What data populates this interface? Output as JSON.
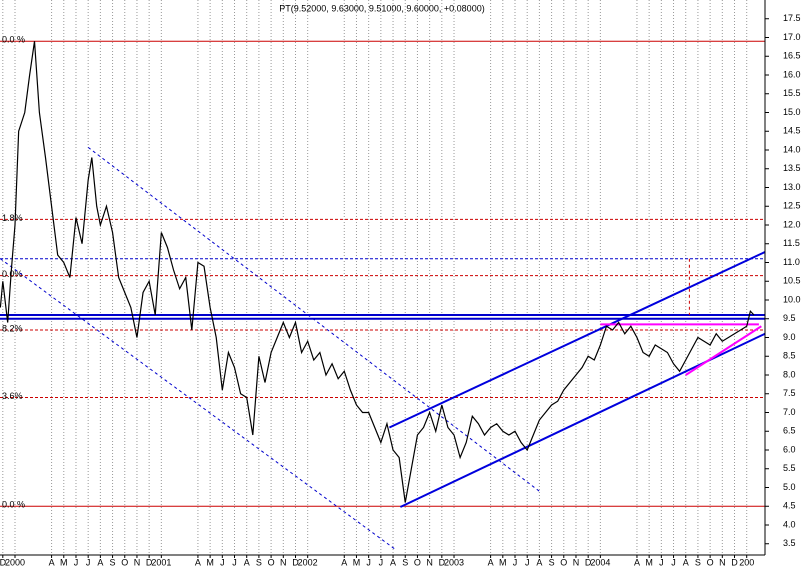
{
  "chart_data": {
    "type": "line",
    "title": "PT(9.52000, 9.63000, 9.51000, 9.60000, +0.08000)",
    "xlim": [
      -1.23,
      61.5
    ],
    "ylim": [
      3.2,
      18.0
    ],
    "grid": true,
    "xticks": [
      {
        "value": -1,
        "label": "D"
      },
      {
        "value": 0,
        "label": "2000"
      },
      {
        "value": 3,
        "label": "A"
      },
      {
        "value": 4,
        "label": "M"
      },
      {
        "value": 5,
        "label": "J"
      },
      {
        "value": 6,
        "label": "J"
      },
      {
        "value": 7,
        "label": "A"
      },
      {
        "value": 8,
        "label": "S"
      },
      {
        "value": 9,
        "label": "O"
      },
      {
        "value": 10,
        "label": "N"
      },
      {
        "value": 11,
        "label": "D"
      },
      {
        "value": 12,
        "label": "2001"
      },
      {
        "value": 15,
        "label": "A"
      },
      {
        "value": 16,
        "label": "M"
      },
      {
        "value": 17,
        "label": "J"
      },
      {
        "value": 18,
        "label": "J"
      },
      {
        "value": 19,
        "label": "A"
      },
      {
        "value": 20,
        "label": "S"
      },
      {
        "value": 21,
        "label": "O"
      },
      {
        "value": 22,
        "label": "N"
      },
      {
        "value": 23,
        "label": "D"
      },
      {
        "value": 24,
        "label": "2002"
      },
      {
        "value": 27,
        "label": "A"
      },
      {
        "value": 28,
        "label": "M"
      },
      {
        "value": 29,
        "label": "J"
      },
      {
        "value": 30,
        "label": "J"
      },
      {
        "value": 31,
        "label": "A"
      },
      {
        "value": 32,
        "label": "S"
      },
      {
        "value": 33,
        "label": "O"
      },
      {
        "value": 34,
        "label": "N"
      },
      {
        "value": 35,
        "label": "D"
      },
      {
        "value": 36,
        "label": "2003"
      },
      {
        "value": 39,
        "label": "A"
      },
      {
        "value": 40,
        "label": "M"
      },
      {
        "value": 41,
        "label": "J"
      },
      {
        "value": 42,
        "label": "J"
      },
      {
        "value": 43,
        "label": "A"
      },
      {
        "value": 44,
        "label": "S"
      },
      {
        "value": 45,
        "label": "O"
      },
      {
        "value": 46,
        "label": "N"
      },
      {
        "value": 47,
        "label": "D"
      },
      {
        "value": 48,
        "label": "2004"
      },
      {
        "value": 51,
        "label": "A"
      },
      {
        "value": 52,
        "label": "M"
      },
      {
        "value": 53,
        "label": "J"
      },
      {
        "value": 54,
        "label": "J"
      },
      {
        "value": 55,
        "label": "A"
      },
      {
        "value": 56,
        "label": "S"
      },
      {
        "value": 57,
        "label": "O"
      },
      {
        "value": 58,
        "label": "N"
      },
      {
        "value": 59,
        "label": "D"
      },
      {
        "value": 60,
        "label": "200"
      }
    ],
    "yticks": [
      3.5,
      {
        "value": 4,
        "label": "4.0"
      },
      4.5,
      {
        "value": 5,
        "label": "5.0"
      },
      5.5,
      {
        "value": 6,
        "label": "6.0"
      },
      6.5,
      {
        "value": 7,
        "label": "7.0"
      },
      7.5,
      {
        "value": 8,
        "label": "8.0"
      },
      8.5,
      {
        "value": 9,
        "label": "9.0"
      },
      9.5,
      {
        "value": 10,
        "label": "10.0"
      },
      10.5,
      {
        "value": 11,
        "label": "11.0"
      },
      11.5,
      {
        "value": 12,
        "label": "12.0"
      },
      12.5,
      {
        "value": 13,
        "label": "13.0"
      },
      13.5,
      {
        "value": 14,
        "label": "14.0"
      },
      14.5,
      {
        "value": 15,
        "label": "15.0"
      },
      15.5,
      {
        "value": 16,
        "label": "16.0"
      },
      16.5,
      {
        "value": 17,
        "label": "17.0"
      },
      17.5
    ],
    "series": [
      {
        "name": "PT",
        "color": "#000000",
        "x": [
          -1.2,
          -1,
          -0.6,
          -0.3,
          0,
          0.3,
          0.8,
          1.2,
          1.6,
          2,
          2.5,
          3,
          3.5,
          4,
          4.5,
          5,
          5.5,
          6,
          6.3,
          6.7,
          7,
          7.5,
          8,
          8.5,
          9,
          9.5,
          10,
          10.5,
          11,
          11.5,
          12,
          12.5,
          13,
          13.5,
          14,
          14.5,
          15,
          15.5,
          16,
          16.5,
          17,
          17.5,
          18,
          18.5,
          19,
          19.5,
          20,
          20.5,
          21,
          21.5,
          22,
          22.5,
          23,
          23.5,
          24,
          24.5,
          25,
          25.5,
          26,
          26.5,
          27,
          27.5,
          28,
          28.5,
          29,
          29.5,
          30,
          30.5,
          31,
          31.5,
          32,
          32.5,
          33,
          33.5,
          34,
          34.5,
          35,
          35.5,
          36,
          36.5,
          37,
          37.5,
          38,
          38.5,
          39,
          39.5,
          40,
          40.5,
          41,
          41.5,
          42,
          42.5,
          43,
          43.5,
          44,
          44.5,
          45,
          45.5,
          46,
          46.5,
          47,
          47.5,
          48,
          48.5,
          49,
          49.5,
          50,
          50.5,
          51,
          51.5,
          52,
          52.5,
          53,
          53.5,
          54,
          54.5,
          55,
          55.5,
          56,
          56.5,
          57,
          57.5,
          58,
          58.5,
          59,
          59.5,
          60,
          60.3,
          60.6
        ],
        "values": [
          9.8,
          10.5,
          9.4,
          10.8,
          12.0,
          14.5,
          15.0,
          16.0,
          16.9,
          15.0,
          13.8,
          12.5,
          11.2,
          11.0,
          10.6,
          12.2,
          11.5,
          13.2,
          13.8,
          12.5,
          12.0,
          12.5,
          11.8,
          10.6,
          10.2,
          9.8,
          9.0,
          10.2,
          10.5,
          9.6,
          11.8,
          11.4,
          10.8,
          10.3,
          10.6,
          9.2,
          11.0,
          10.9,
          9.8,
          9.0,
          7.6,
          8.6,
          8.2,
          7.5,
          7.4,
          6.4,
          8.5,
          7.8,
          8.6,
          9.0,
          9.4,
          9.0,
          9.4,
          8.6,
          8.9,
          8.4,
          8.6,
          8.0,
          8.3,
          7.9,
          8.1,
          7.6,
          7.2,
          7.0,
          7.0,
          6.6,
          6.2,
          6.7,
          6.0,
          5.8,
          4.6,
          5.5,
          6.4,
          6.6,
          7.0,
          6.5,
          7.2,
          6.6,
          6.4,
          5.8,
          6.2,
          6.9,
          6.7,
          6.4,
          6.6,
          6.7,
          6.5,
          6.4,
          6.5,
          6.2,
          6.0,
          6.4,
          6.8,
          7.0,
          7.2,
          7.3,
          7.6,
          7.8,
          8.0,
          8.2,
          8.5,
          8.4,
          8.8,
          9.3,
          9.2,
          9.4,
          9.1,
          9.3,
          9.0,
          8.6,
          8.5,
          8.8,
          8.7,
          8.6,
          8.3,
          8.1,
          8.4,
          8.7,
          9.0,
          8.9,
          8.8,
          9.1,
          8.9,
          9.0,
          9.1,
          9.2,
          9.3,
          9.7,
          9.6
        ]
      }
    ],
    "levels": [
      {
        "value": 16.9,
        "label": "0.0 %",
        "color": "#cc0000",
        "style": "solid"
      },
      {
        "value": 12.15,
        "label": "1.8%",
        "color": "#cc0000",
        "style": "dashed"
      },
      {
        "value": 10.65,
        "label": "0.0%",
        "color": "#cc0000",
        "style": "dashed"
      },
      {
        "value": 9.2,
        "label": "8.2%",
        "color": "#cc0000",
        "style": "dashed"
      },
      {
        "value": 7.4,
        "label": "3.6%",
        "color": "#cc0000",
        "style": "dashed"
      },
      {
        "value": 4.5,
        "label": "0.0 %",
        "color": "#cc0000",
        "style": "solid"
      },
      {
        "value": 11.1,
        "color": "#0000cc",
        "style": "dashed"
      },
      {
        "value": 9.6,
        "color": "#0000cc",
        "style": "solid"
      },
      {
        "value": 9.5,
        "color": "#0000cc",
        "style": "solid"
      }
    ],
    "lines": [
      {
        "x": [
          31.6,
          61.5
        ],
        "y": [
          4.48,
          9.1
        ],
        "color": "#0000dd",
        "style": "solid"
      },
      {
        "x": [
          30.7,
          61.5
        ],
        "y": [
          6.6,
          11.28
        ],
        "color": "#0000dd",
        "style": "solid"
      },
      {
        "x": [
          -1.2,
          31.1
        ],
        "y": [
          11.1,
          3.37
        ],
        "color": "#0000cc",
        "style": "dashed"
      },
      {
        "x": [
          6.0,
          43.0
        ],
        "y": [
          14.07,
          4.9
        ],
        "color": "#0000cc",
        "style": "dashed"
      },
      {
        "x": [
          48.0,
          61.0
        ],
        "y": [
          9.35,
          9.35
        ],
        "color": "#ff00ff",
        "style": "solid"
      },
      {
        "x": [
          55.0,
          61.2
        ],
        "y": [
          8.0,
          9.3
        ],
        "color": "#ff00ff",
        "style": "solid"
      },
      {
        "x": [
          55.3,
          55.3
        ],
        "y": [
          11.1,
          9.6
        ],
        "color": "#cc0000",
        "style": "dashed"
      }
    ]
  }
}
